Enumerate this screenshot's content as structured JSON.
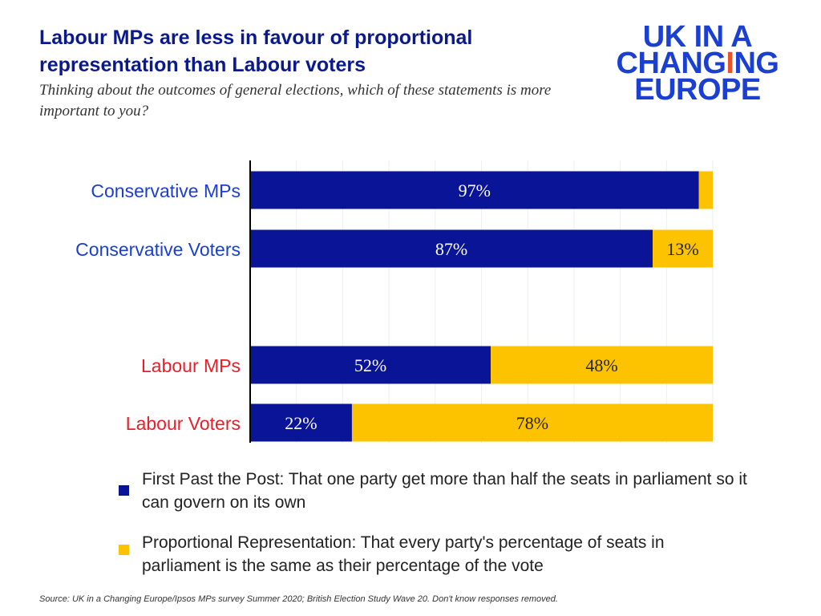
{
  "title": "Labour MPs are less in favour of proportional representation than Labour voters",
  "subtitle": "Thinking about the outcomes of general elections, which of these statements is more important to you?",
  "logo": {
    "line1": "UK IN A",
    "line2a": "CHA",
    "line2b": "N",
    "line2c": "G",
    "line2d": "I",
    "line2e": "NG",
    "line3": "EUROPE"
  },
  "source": "Source: UK in a Changing Europe/Ipsos MPs survey Summer 2020;  British Election Study Wave 20. Don't know responses removed.",
  "colors": {
    "fptp": "#0a1496",
    "pr": "#fdc300",
    "conservative_label": "#1a3fd1",
    "labour_label": "#e8202a"
  },
  "chart_data": {
    "type": "bar",
    "orientation": "horizontal",
    "stacked": true,
    "categories": [
      "Conservative MPs",
      "Conservative Voters",
      "Labour MPs",
      "Labour Voters"
    ],
    "series": [
      {
        "name": "First Past the Post: That one party get more than half the seats in parliament so it can govern on its own",
        "values": [
          97,
          87,
          52,
          22
        ],
        "labels": [
          "97%",
          "87%",
          "52%",
          "22%"
        ]
      },
      {
        "name": "Proportional Representation: That every party's percentage of seats in parliament is the same as their percentage of the vote",
        "values": [
          3,
          13,
          48,
          78
        ],
        "labels": [
          "",
          "13%",
          "48%",
          "78%"
        ]
      }
    ],
    "xlim": [
      0,
      100
    ],
    "grid": true,
    "legend_position": "bottom"
  }
}
